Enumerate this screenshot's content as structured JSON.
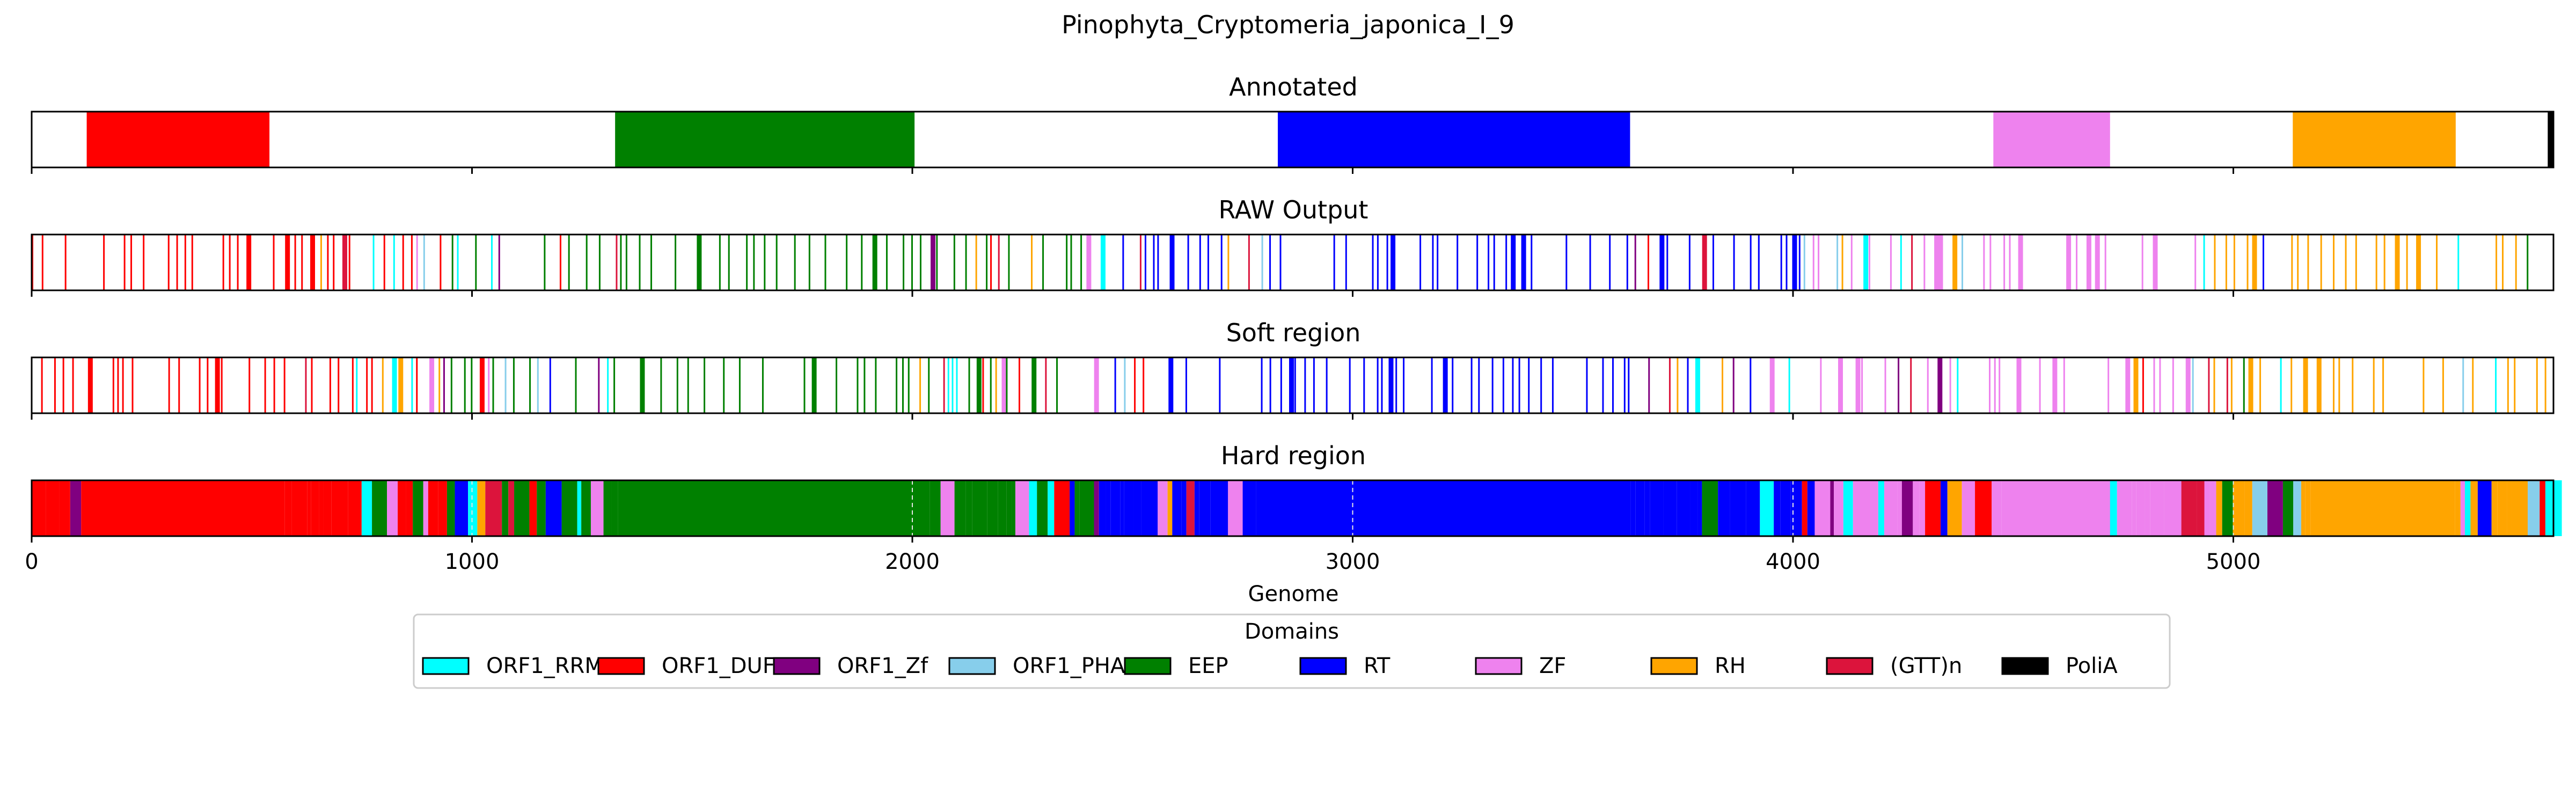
{
  "chart_data": {
    "type": "bar",
    "title": "Pinophyta_Cryptomeria_japonica_I_9",
    "xlabel": "Genome",
    "xlim": [
      0,
      5727
    ],
    "xticks": [
      0,
      1000,
      2000,
      3000,
      4000,
      5000
    ],
    "grid": "x dashed (Hard region only)",
    "legend": {
      "title": "Domains",
      "placement": "bottom-center",
      "entries": [
        {
          "name": "ORF1_RRM",
          "color": "#00ffff"
        },
        {
          "name": "ORF1_DUF",
          "color": "#ff0000"
        },
        {
          "name": "ORF1_Zf",
          "color": "#800080"
        },
        {
          "name": "ORF1_PHA",
          "color": "#87ceeb"
        },
        {
          "name": "EEP",
          "color": "#008000"
        },
        {
          "name": "RT",
          "color": "#0000ff"
        },
        {
          "name": "ZF",
          "color": "#ee82ee"
        },
        {
          "name": "RH",
          "color": "#ffa500"
        },
        {
          "name": "(GTT)n",
          "color": "#dc143c"
        },
        {
          "name": "PoliA",
          "color": "#000000"
        }
      ]
    },
    "tracks": [
      {
        "title": "Annotated",
        "segments": [
          {
            "domain": "ORF1_DUF",
            "start": 125,
            "end": 540
          },
          {
            "domain": "EEP",
            "start": 1325,
            "end": 2005
          },
          {
            "domain": "RT",
            "start": 2830,
            "end": 3630
          },
          {
            "domain": "ZF",
            "start": 4455,
            "end": 4720
          },
          {
            "domain": "RH",
            "start": 5135,
            "end": 5505
          },
          {
            "domain": "PoliA",
            "start": 5714,
            "end": 5727
          }
        ]
      },
      {
        "title": "RAW Output",
        "style": "sparse",
        "segments": [
          {
            "domain": "ORF1_DUF",
            "start": 0,
            "end": 560
          },
          {
            "domain": "EEP",
            "start": 1330,
            "end": 2000
          },
          {
            "domain": "RT",
            "start": 2830,
            "end": 3630
          },
          {
            "domain": "ZF",
            "start": 4450,
            "end": 4720
          },
          {
            "domain": "RH",
            "start": 5130,
            "end": 5500
          }
        ]
      },
      {
        "title": "Soft region",
        "style": "sparse",
        "segments": [
          {
            "domain": "ORF1_DUF",
            "start": 0,
            "end": 560
          },
          {
            "domain": "EEP",
            "start": 1330,
            "end": 2000
          },
          {
            "domain": "RT",
            "start": 2830,
            "end": 3630
          },
          {
            "domain": "ZF",
            "start": 4450,
            "end": 4720
          },
          {
            "domain": "RH",
            "start": 5130,
            "end": 5500
          }
        ]
      },
      {
        "title": "Hard region",
        "style": "filled",
        "segments": [
          {
            "domain": "ORF1_DUF",
            "start": 115,
            "end": 545
          },
          {
            "domain": "EEP",
            "start": 1340,
            "end": 2000
          },
          {
            "domain": "RT",
            "start": 2800,
            "end": 3620
          },
          {
            "domain": "ZF",
            "start": 4500,
            "end": 4720
          },
          {
            "domain": "RH",
            "start": 5190,
            "end": 5500
          }
        ]
      }
    ]
  }
}
